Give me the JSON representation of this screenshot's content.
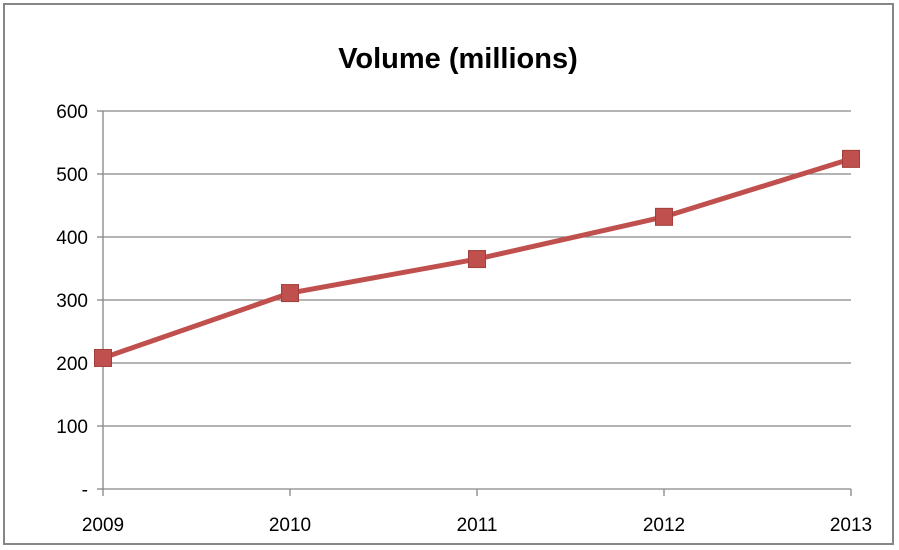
{
  "chart_data": {
    "type": "line",
    "title": "Volume (millions)",
    "xlabel": "",
    "ylabel": "",
    "categories": [
      "2009",
      "2010",
      "2011",
      "2012",
      "2013"
    ],
    "series": [
      {
        "values": [
          208,
          311,
          365,
          432,
          524
        ],
        "color": "#C0504D",
        "marker": "square"
      }
    ],
    "ylim": [
      0,
      600
    ],
    "y_ticks": [
      0,
      100,
      200,
      300,
      400,
      500,
      600
    ],
    "y_tick_labels": [
      "-",
      "100",
      "200",
      "300",
      "400",
      "500",
      "600"
    ],
    "grid": true,
    "legend": "none"
  }
}
